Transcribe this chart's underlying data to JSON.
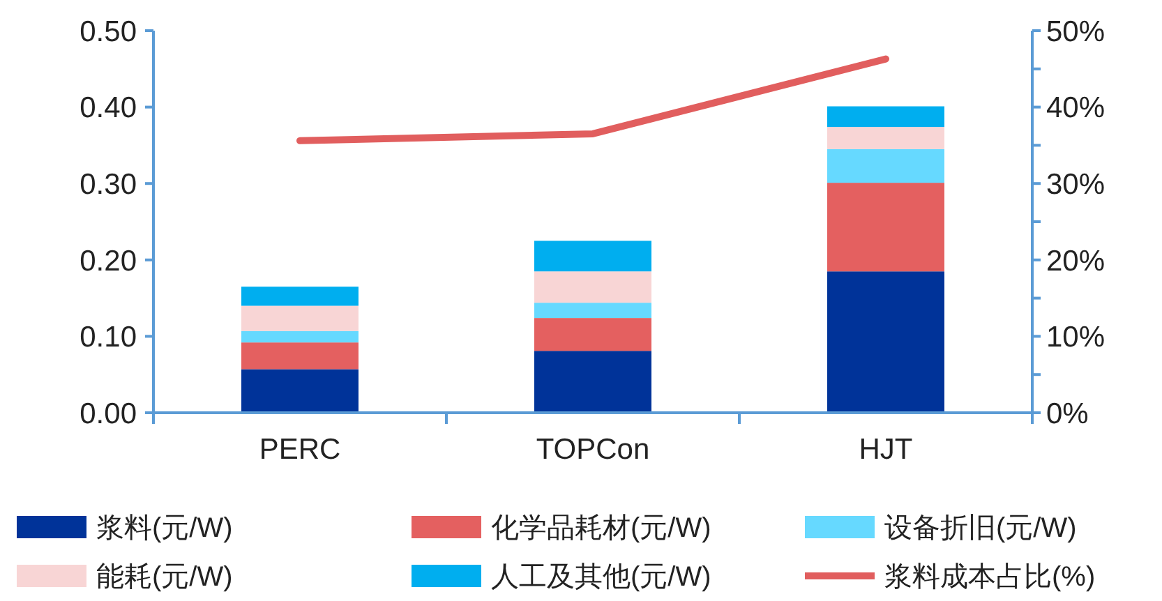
{
  "chart_data": {
    "type": "bar",
    "stacked": true,
    "categories": [
      "PERC",
      "TOPCon",
      "HJT"
    ],
    "series": [
      {
        "name": "浆料(元/W)",
        "color": "#003399",
        "values": [
          0.057,
          0.081,
          0.185
        ]
      },
      {
        "name": "化学品耗材(元/W)",
        "color": "#e46060",
        "values": [
          0.035,
          0.043,
          0.116
        ]
      },
      {
        "name": "设备折旧(元/W)",
        "color": "#66d9ff",
        "values": [
          0.015,
          0.02,
          0.044
        ]
      },
      {
        "name": "能耗(元/W)",
        "color": "#f8d5d5",
        "values": [
          0.033,
          0.041,
          0.029
        ]
      },
      {
        "name": "人工及其他(元/W)",
        "color": "#00aeef",
        "values": [
          0.025,
          0.04,
          0.027
        ]
      },
      {
        "name": "浆料成本占比(%)",
        "type": "line",
        "axis": "y2",
        "color": "#e15e5e",
        "values": [
          35.6,
          36.5,
          46.3
        ]
      }
    ],
    "ylim": [
      0,
      0.5
    ],
    "yticks": [
      {
        "value": 0,
        "label": "0.00"
      },
      {
        "value": 0.1,
        "label": "0.10"
      },
      {
        "value": 0.2,
        "label": "0.20"
      },
      {
        "value": 0.3,
        "label": "0.30"
      },
      {
        "value": 0.4,
        "label": "0.40"
      },
      {
        "value": 0.5,
        "label": "0.50"
      }
    ],
    "y2lim": [
      0,
      50
    ],
    "y2ticks": [
      {
        "value": 0,
        "label": "0%"
      },
      {
        "value": 5,
        "label": null
      },
      {
        "value": 10,
        "label": "10%"
      },
      {
        "value": 15,
        "label": null
      },
      {
        "value": 20,
        "label": "20%"
      },
      {
        "value": 25,
        "label": null
      },
      {
        "value": 30,
        "label": "30%"
      },
      {
        "value": 35,
        "label": null
      },
      {
        "value": 40,
        "label": "40%"
      },
      {
        "value": 45,
        "label": null
      },
      {
        "value": 50,
        "label": "50%"
      }
    ],
    "grid": false,
    "legend": "bottom"
  }
}
